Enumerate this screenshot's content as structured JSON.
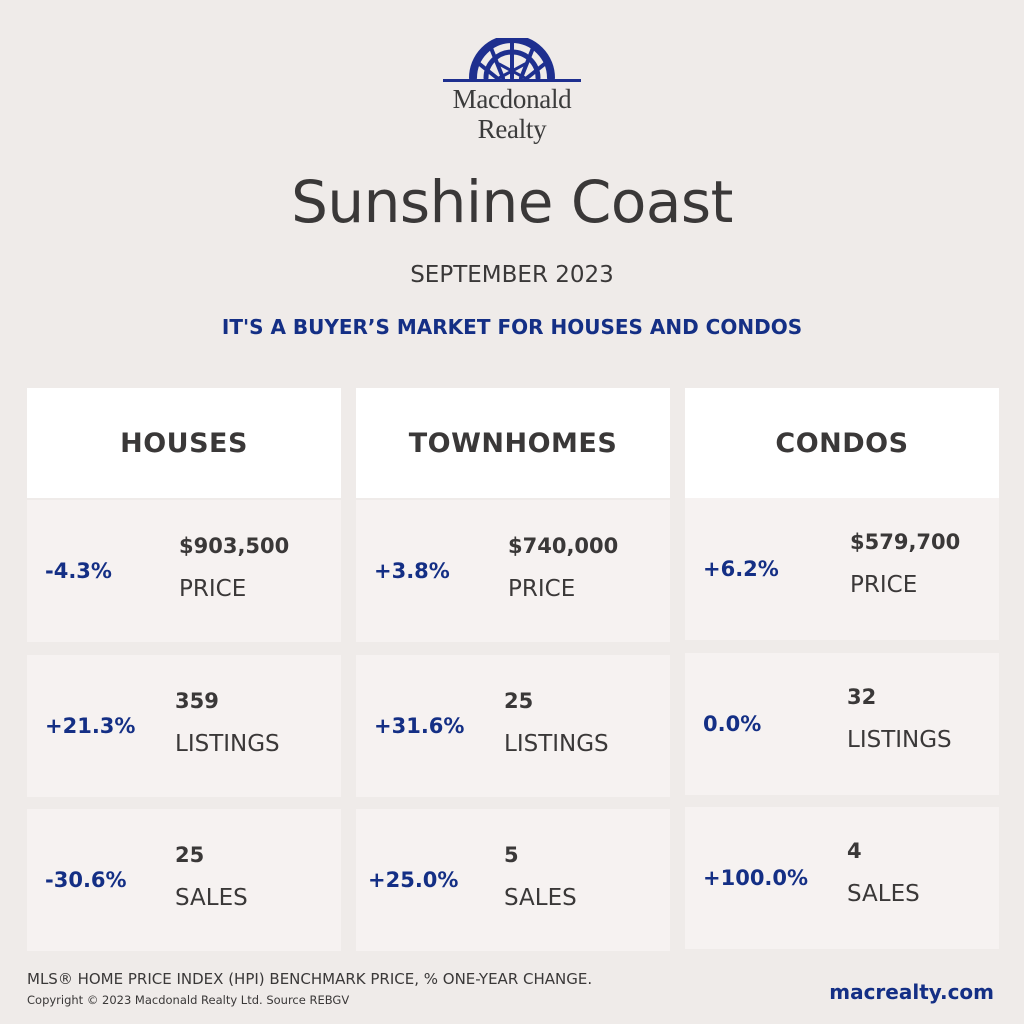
{
  "brand": {
    "line1": "Macdonald",
    "line2": "Realty",
    "logo_icon": "sunrise-arch-icon",
    "color": "#1e2f8f"
  },
  "title": "Sunshine Coast",
  "subtitle": "SEPTEMBER 2023",
  "headline": "IT'S A BUYER’S MARKET FOR HOUSES AND CONDOS",
  "accent_color": "#142f85",
  "columns": [
    {
      "heading": "HOUSES",
      "rows": [
        {
          "change": "-4.3%",
          "value": "$903,500",
          "label": "PRICE"
        },
        {
          "change": "+21.3%",
          "value": "359",
          "label": "LISTINGS"
        },
        {
          "change": "-30.6%",
          "value": "25",
          "label": "SALES"
        }
      ]
    },
    {
      "heading": "TOWNHOMES",
      "rows": [
        {
          "change": "+3.8%",
          "value": "$740,000",
          "label": "PRICE"
        },
        {
          "change": "+31.6%",
          "value": "25",
          "label": "LISTINGS"
        },
        {
          "change": "+25.0%",
          "value": "5",
          "label": "SALES"
        }
      ]
    },
    {
      "heading": "CONDOS",
      "rows": [
        {
          "change": "+6.2%",
          "value": "$579,700",
          "label": "PRICE"
        },
        {
          "change": "0.0%",
          "value": "32",
          "label": "LISTINGS"
        },
        {
          "change": "+100.0%",
          "value": "4",
          "label": "SALES"
        }
      ]
    }
  ],
  "footer": {
    "note": "MLS® HOME PRICE INDEX (HPI) BENCHMARK PRICE, % ONE-YEAR CHANGE.",
    "copyright": "Copyright © 2023 Macdonald Realty Ltd. Source REBGV",
    "website": "macrealty.com"
  }
}
